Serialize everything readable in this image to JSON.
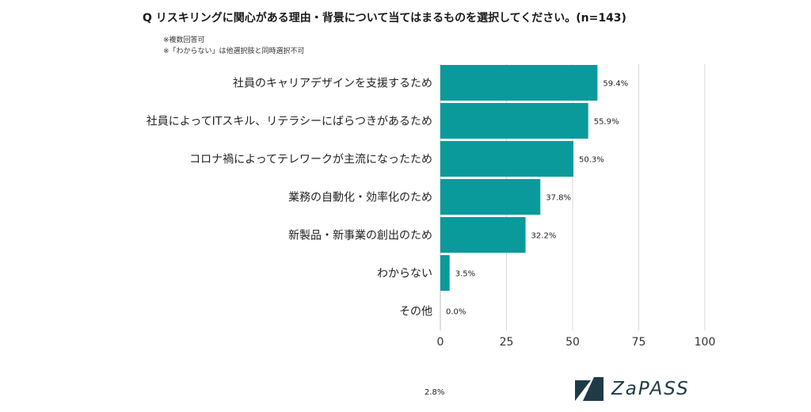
{
  "header": {
    "title": "Q リスキリングに関心がある理由・背景について当てはまるものを選択してください。(n=143)",
    "notes": [
      "※複数回答可",
      "※「わからない」は他選択肢と同時選択不可"
    ]
  },
  "footnote": "2.8%",
  "logo": {
    "text": "ZaPASS"
  },
  "colors": {
    "bar": "#0b9a9c",
    "grid": "#d9d9d9",
    "logo": "#1f3b45"
  },
  "chart_data": {
    "type": "bar",
    "orientation": "horizontal",
    "categories": [
      "社員のキャリアデザインを支援するため",
      "社員によってITスキル、リテラシーにばらつきがあるため",
      "コロナ禍によってテレワークが主流になったため",
      "業務の自動化・効率化のため",
      "新製品・新事業の創出のため",
      "わからない",
      "その他"
    ],
    "values": [
      59.4,
      55.9,
      50.3,
      37.8,
      32.2,
      3.5,
      0.0
    ],
    "labels": [
      "59.4%",
      "55.9%",
      "50.3%",
      "37.8%",
      "32.2%",
      "3.5%",
      "0.0%"
    ],
    "xlim": [
      0,
      100
    ],
    "xticks": [
      0,
      25,
      50,
      75,
      100
    ],
    "grid": true,
    "legend": "none"
  }
}
